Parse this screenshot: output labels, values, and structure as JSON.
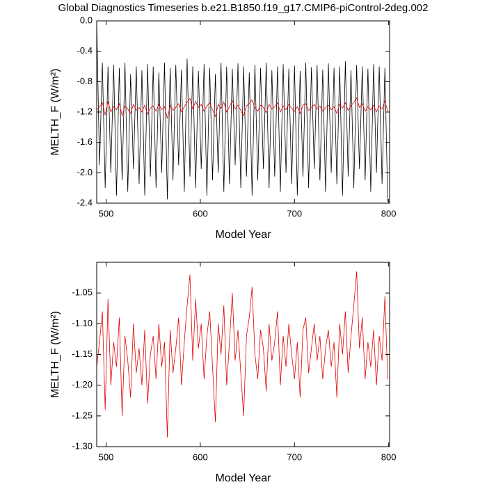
{
  "chart_data": [
    {
      "type": "line",
      "title": "Global Diagnostics Timeseries b.e21.B1850.f19_g17.CMIP6-piControl-2deg.002",
      "x_label": "Model Year",
      "y_label": "MELTH_F (W/m²)",
      "xlim": [
        490,
        801
      ],
      "xticks": [
        500,
        600,
        700,
        800
      ],
      "ylim": [
        -2.4,
        0.0
      ],
      "yticks": [
        {
          "value": 0.0,
          "label": "0.0"
        },
        -0.4,
        -0.8,
        -1.2,
        -1.6,
        {
          "value": -2.0,
          "label": "-2.0"
        },
        -2.4
      ],
      "x": [
        490,
        493,
        496,
        499,
        502,
        505,
        508,
        511,
        514,
        517,
        520,
        523,
        526,
        529,
        532,
        535,
        538,
        541,
        544,
        547,
        550,
        553,
        556,
        559,
        562,
        565,
        568,
        571,
        574,
        577,
        580,
        583,
        586,
        589,
        592,
        595,
        598,
        601,
        604,
        607,
        610,
        613,
        616,
        619,
        622,
        625,
        628,
        631,
        634,
        637,
        640,
        643,
        646,
        649,
        652,
        655,
        658,
        661,
        664,
        667,
        670,
        673,
        676,
        679,
        682,
        685,
        688,
        691,
        694,
        697,
        700,
        703,
        706,
        709,
        712,
        715,
        718,
        721,
        724,
        727,
        730,
        733,
        736,
        739,
        742,
        745,
        748,
        751,
        754,
        757,
        760,
        763,
        766,
        769,
        772,
        775,
        778,
        781,
        784,
        787,
        790,
        793,
        796,
        799
      ],
      "series": [
        {
          "color": "#000000",
          "values": [
            0.0,
            -1.9,
            -0.55,
            -2.2,
            -0.6,
            -2.0,
            -0.58,
            -2.3,
            -0.62,
            -2.1,
            -0.55,
            -2.25,
            -0.7,
            -1.95,
            -0.6,
            -2.15,
            -0.65,
            -2.3,
            -0.57,
            -2.05,
            -0.6,
            -2.2,
            -0.68,
            -2.0,
            -0.55,
            -2.35,
            -0.62,
            -2.1,
            -0.58,
            -1.9,
            -0.64,
            -2.25,
            -0.5,
            -2.05,
            -0.6,
            -2.2,
            -0.66,
            -1.95,
            -0.57,
            -2.3,
            -0.62,
            -2.1,
            -0.7,
            -2.0,
            -0.55,
            -2.25,
            -0.6,
            -2.15,
            -0.63,
            -1.9,
            -0.56,
            -2.2,
            -0.6,
            -2.05,
            -0.68,
            -2.3,
            -0.58,
            -2.1,
            -0.62,
            -1.95,
            -0.55,
            -2.2,
            -0.65,
            -2.05,
            -0.6,
            -2.25,
            -0.57,
            -2.0,
            -0.63,
            -2.15,
            -0.59,
            -2.3,
            -0.66,
            -2.05,
            -0.55,
            -2.2,
            -0.61,
            -1.95,
            -0.58,
            -2.1,
            -0.64,
            -2.25,
            -0.56,
            -2.0,
            -0.62,
            -2.15,
            -0.6,
            -2.3,
            -0.53,
            -2.05,
            -0.65,
            -2.2,
            -0.58,
            -1.95,
            -0.6,
            -2.1,
            -0.63,
            -2.25,
            -0.57,
            -2.0,
            -0.6,
            -2.15,
            -0.62,
            -2.38
          ]
        },
        {
          "color": "#e00000",
          "values": [
            -1.17,
            -1.13,
            -1.08,
            -1.24,
            -1.06,
            -1.2,
            -1.13,
            -1.17,
            -1.09,
            -1.25,
            -1.12,
            -1.16,
            -1.22,
            -1.1,
            -1.18,
            -1.14,
            -1.2,
            -1.11,
            -1.23,
            -1.15,
            -1.12,
            -1.19,
            -1.1,
            -1.17,
            -1.13,
            -1.285,
            -1.11,
            -1.18,
            -1.14,
            -1.09,
            -1.2,
            -1.13,
            -1.07,
            -1.02,
            -1.16,
            -1.06,
            -1.14,
            -1.1,
            -1.19,
            -1.12,
            -1.08,
            -1.17,
            -1.26,
            -1.1,
            -1.15,
            -1.07,
            -1.2,
            -1.13,
            -1.05,
            -1.16,
            -1.11,
            -1.18,
            -1.25,
            -1.12,
            -1.09,
            -1.04,
            -1.15,
            -1.19,
            -1.11,
            -1.14,
            -1.21,
            -1.1,
            -1.16,
            -1.13,
            -1.08,
            -1.2,
            -1.12,
            -1.17,
            -1.1,
            -1.15,
            -1.19,
            -1.13,
            -1.22,
            -1.11,
            -1.09,
            -1.18,
            -1.14,
            -1.1,
            -1.16,
            -1.12,
            -1.19,
            -1.14,
            -1.11,
            -1.17,
            -1.13,
            -1.22,
            -1.1,
            -1.15,
            -1.08,
            -1.18,
            -1.12,
            -1.07,
            -1.015,
            -1.14,
            -1.09,
            -1.19,
            -1.13,
            -1.17,
            -1.11,
            -1.2,
            -1.12,
            -1.16,
            -1.055,
            -1.19
          ]
        }
      ]
    },
    {
      "type": "line",
      "x_label": "Model Year",
      "y_label": "MELTH_F (W/m²)",
      "xlim": [
        490,
        801
      ],
      "xticks": [
        500,
        600,
        700,
        800
      ],
      "ylim": [
        -1.3,
        -1.0
      ],
      "yticks": [
        -1.05,
        {
          "value": -1.1,
          "label": "-1.10"
        },
        -1.15,
        {
          "value": -1.2,
          "label": "-1.20"
        },
        -1.25,
        {
          "value": -1.3,
          "label": "-1.30"
        }
      ],
      "x": [
        490,
        493,
        496,
        499,
        502,
        505,
        508,
        511,
        514,
        517,
        520,
        523,
        526,
        529,
        532,
        535,
        538,
        541,
        544,
        547,
        550,
        553,
        556,
        559,
        562,
        565,
        568,
        571,
        574,
        577,
        580,
        583,
        586,
        589,
        592,
        595,
        598,
        601,
        604,
        607,
        610,
        613,
        616,
        619,
        622,
        625,
        628,
        631,
        634,
        637,
        640,
        643,
        646,
        649,
        652,
        655,
        658,
        661,
        664,
        667,
        670,
        673,
        676,
        679,
        682,
        685,
        688,
        691,
        694,
        697,
        700,
        703,
        706,
        709,
        712,
        715,
        718,
        721,
        724,
        727,
        730,
        733,
        736,
        739,
        742,
        745,
        748,
        751,
        754,
        757,
        760,
        763,
        766,
        769,
        772,
        775,
        778,
        781,
        784,
        787,
        790,
        793,
        796,
        799
      ],
      "series": [
        {
          "color": "#e00000",
          "values": [
            -1.17,
            -1.13,
            -1.08,
            -1.24,
            -1.06,
            -1.2,
            -1.13,
            -1.17,
            -1.09,
            -1.25,
            -1.12,
            -1.16,
            -1.22,
            -1.1,
            -1.18,
            -1.14,
            -1.2,
            -1.11,
            -1.23,
            -1.15,
            -1.12,
            -1.19,
            -1.1,
            -1.17,
            -1.13,
            -1.285,
            -1.11,
            -1.18,
            -1.14,
            -1.09,
            -1.2,
            -1.13,
            -1.07,
            -1.02,
            -1.16,
            -1.06,
            -1.14,
            -1.1,
            -1.19,
            -1.12,
            -1.08,
            -1.17,
            -1.26,
            -1.1,
            -1.15,
            -1.07,
            -1.2,
            -1.13,
            -1.05,
            -1.16,
            -1.11,
            -1.18,
            -1.25,
            -1.12,
            -1.09,
            -1.04,
            -1.15,
            -1.19,
            -1.11,
            -1.14,
            -1.21,
            -1.1,
            -1.16,
            -1.13,
            -1.08,
            -1.2,
            -1.12,
            -1.17,
            -1.1,
            -1.15,
            -1.19,
            -1.13,
            -1.22,
            -1.11,
            -1.09,
            -1.18,
            -1.14,
            -1.1,
            -1.16,
            -1.12,
            -1.19,
            -1.14,
            -1.11,
            -1.17,
            -1.13,
            -1.22,
            -1.1,
            -1.15,
            -1.08,
            -1.18,
            -1.12,
            -1.07,
            -1.015,
            -1.14,
            -1.09,
            -1.19,
            -1.13,
            -1.17,
            -1.11,
            -1.2,
            -1.12,
            -1.16,
            -1.055,
            -1.19
          ]
        }
      ]
    }
  ]
}
